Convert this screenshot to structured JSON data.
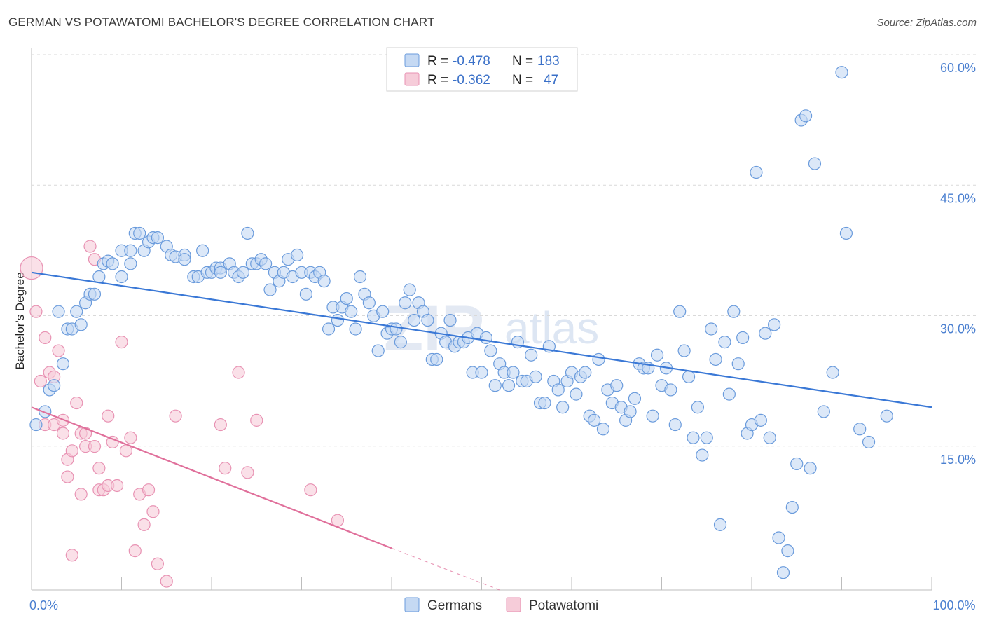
{
  "title": "GERMAN VS POTAWATOMI BACHELOR'S DEGREE CORRELATION CHART",
  "source": "Source: ZipAtlas.com",
  "watermark": {
    "zip": "ZIP",
    "atlas": "atlas"
  },
  "colors": {
    "blue": "#3a78d6",
    "blue_fill": "#c5d9f3",
    "blue_stroke": "#6a9bdc",
    "pink": "#e0709b",
    "pink_fill": "#f6ccd9",
    "pink_stroke": "#e892b3",
    "grid": "#d9d9d9",
    "tick_text": "#4a7fd0"
  },
  "legend_box": {
    "rows": [
      {
        "r_label": "R =",
        "r_value": "-0.478",
        "n_label": "N =",
        "n_value": "183",
        "series": "Germans"
      },
      {
        "r_label": "R =",
        "r_value": "-0.362",
        "n_label": "N =",
        "n_value": "47",
        "series": "Potawatomi"
      }
    ]
  },
  "bottom_legend": [
    {
      "label": "Germans",
      "series": "Germans"
    },
    {
      "label": "Potawatomi",
      "series": "Potawatomi"
    }
  ],
  "chart_data": {
    "type": "scatter",
    "title": "GERMAN VS POTAWATOMI BACHELOR'S DEGREE CORRELATION CHART",
    "xlabel": "",
    "ylabel": "Bachelor's Degree",
    "xlim": [
      0,
      100
    ],
    "ylim": [
      0,
      60
    ],
    "x_tick_labels": [
      {
        "value": 0,
        "label": "0.0%"
      },
      {
        "value": 100,
        "label": "100.0%"
      }
    ],
    "y_tick_labels": [
      {
        "value": 15,
        "label": "15.0%"
      },
      {
        "value": 30,
        "label": "30.0%"
      },
      {
        "value": 45,
        "label": "45.0%"
      },
      {
        "value": 60,
        "label": "60.0%"
      }
    ],
    "grid": true,
    "series": [
      {
        "name": "Germans",
        "r": -0.478,
        "n": 183,
        "trend": {
          "x0": 0,
          "y0": 36.5,
          "x1": 100,
          "y1": 21.0
        },
        "points": [
          [
            0.5,
            19.0
          ],
          [
            1.5,
            20.5
          ],
          [
            2,
            23
          ],
          [
            2.5,
            23.5
          ],
          [
            3,
            32
          ],
          [
            3.5,
            26
          ],
          [
            4,
            30
          ],
          [
            4.5,
            30
          ],
          [
            5,
            32
          ],
          [
            5.5,
            30.5
          ],
          [
            6,
            33
          ],
          [
            6.5,
            34
          ],
          [
            7,
            34
          ],
          [
            7.5,
            36
          ],
          [
            8,
            37.5
          ],
          [
            8.5,
            37.8
          ],
          [
            9,
            37.5
          ],
          [
            10,
            39
          ],
          [
            10,
            36
          ],
          [
            11,
            39
          ],
          [
            11,
            37.5
          ],
          [
            11.5,
            41
          ],
          [
            12,
            41
          ],
          [
            12.5,
            39
          ],
          [
            13,
            40
          ],
          [
            13.5,
            40.5
          ],
          [
            14,
            40.5
          ],
          [
            15,
            39.5
          ],
          [
            15.5,
            38.5
          ],
          [
            16,
            38.3
          ],
          [
            17,
            38.5
          ],
          [
            17,
            38
          ],
          [
            18,
            36
          ],
          [
            18.5,
            36
          ],
          [
            19,
            39
          ],
          [
            19.5,
            36.5
          ],
          [
            20,
            36.5
          ],
          [
            20.5,
            37
          ],
          [
            21,
            37
          ],
          [
            21,
            36.5
          ],
          [
            22,
            37.5
          ],
          [
            22.5,
            36.5
          ],
          [
            23,
            36
          ],
          [
            23.5,
            36.5
          ],
          [
            24,
            41
          ],
          [
            24.5,
            37.5
          ],
          [
            25,
            37.5
          ],
          [
            25.5,
            38
          ],
          [
            26,
            37.5
          ],
          [
            26.5,
            34.5
          ],
          [
            27,
            36.5
          ],
          [
            27.5,
            35.5
          ],
          [
            28,
            36.5
          ],
          [
            28.5,
            38
          ],
          [
            29,
            36
          ],
          [
            29.5,
            38.5
          ],
          [
            30,
            36.5
          ],
          [
            30.5,
            34
          ],
          [
            31,
            36.5
          ],
          [
            31.5,
            36
          ],
          [
            32,
            36.5
          ],
          [
            32.5,
            35.5
          ],
          [
            33,
            30
          ],
          [
            33.5,
            32.5
          ],
          [
            34,
            31
          ],
          [
            34.5,
            32.5
          ],
          [
            35,
            33.5
          ],
          [
            35.5,
            32
          ],
          [
            36,
            30
          ],
          [
            36.5,
            36
          ],
          [
            37,
            34
          ],
          [
            37.5,
            33
          ],
          [
            38,
            31.5
          ],
          [
            38.5,
            27.5
          ],
          [
            39,
            32
          ],
          [
            39.5,
            29.5
          ],
          [
            40,
            30
          ],
          [
            40.5,
            30
          ],
          [
            41,
            28.5
          ],
          [
            41.5,
            33
          ],
          [
            42,
            34.5
          ],
          [
            42.5,
            31
          ],
          [
            43,
            33
          ],
          [
            43.5,
            32
          ],
          [
            44,
            31
          ],
          [
            44.5,
            26.5
          ],
          [
            45,
            26.5
          ],
          [
            45.5,
            29.5
          ],
          [
            46,
            28.5
          ],
          [
            46.5,
            31
          ],
          [
            47,
            28
          ],
          [
            47.5,
            28.5
          ],
          [
            48,
            28.5
          ],
          [
            48.5,
            29
          ],
          [
            49,
            25
          ],
          [
            49.5,
            29.5
          ],
          [
            50,
            25
          ],
          [
            50.5,
            29
          ],
          [
            51,
            27.5
          ],
          [
            51.5,
            23.5
          ],
          [
            52,
            26
          ],
          [
            52.5,
            25
          ],
          [
            53,
            23.5
          ],
          [
            53.5,
            25
          ],
          [
            54,
            28.5
          ],
          [
            54.5,
            24
          ],
          [
            55,
            24
          ],
          [
            55.5,
            27
          ],
          [
            56,
            24.5
          ],
          [
            56.5,
            21.5
          ],
          [
            57,
            21.5
          ],
          [
            57.5,
            28
          ],
          [
            58,
            24
          ],
          [
            58.5,
            23
          ],
          [
            59,
            21
          ],
          [
            59.5,
            24
          ],
          [
            60,
            25
          ],
          [
            60.5,
            22.5
          ],
          [
            61,
            24.5
          ],
          [
            61.5,
            25
          ],
          [
            62,
            20
          ],
          [
            62.5,
            19.5
          ],
          [
            63,
            26.5
          ],
          [
            63.5,
            18.5
          ],
          [
            64,
            23
          ],
          [
            64.5,
            21.5
          ],
          [
            65,
            23.5
          ],
          [
            65.5,
            21
          ],
          [
            66,
            19.5
          ],
          [
            66.5,
            20.5
          ],
          [
            67,
            22
          ],
          [
            67.5,
            26
          ],
          [
            68,
            25.5
          ],
          [
            68.5,
            25.5
          ],
          [
            69,
            20
          ],
          [
            69.5,
            27
          ],
          [
            70,
            23.5
          ],
          [
            70.5,
            25.5
          ],
          [
            71,
            23
          ],
          [
            71.5,
            19
          ],
          [
            72,
            32
          ],
          [
            72.5,
            27.5
          ],
          [
            73,
            24.5
          ],
          [
            73.5,
            17.5
          ],
          [
            74,
            21
          ],
          [
            74.5,
            15.5
          ],
          [
            75,
            17.5
          ],
          [
            75.5,
            30
          ],
          [
            76,
            26.5
          ],
          [
            76.5,
            7.5
          ],
          [
            77,
            28.5
          ],
          [
            77.5,
            22.5
          ],
          [
            78,
            32
          ],
          [
            78.5,
            26
          ],
          [
            79,
            29
          ],
          [
            79.5,
            18
          ],
          [
            80,
            19
          ],
          [
            80.5,
            48
          ],
          [
            81,
            19.5
          ],
          [
            81.5,
            29.5
          ],
          [
            82,
            17.5
          ],
          [
            82.5,
            30.5
          ],
          [
            83,
            6
          ],
          [
            83.5,
            2
          ],
          [
            84,
            4.5
          ],
          [
            84.5,
            9.5
          ],
          [
            85,
            14.5
          ],
          [
            85.5,
            54
          ],
          [
            86,
            54.5
          ],
          [
            86.5,
            14
          ],
          [
            87,
            49
          ],
          [
            88,
            20.5
          ],
          [
            89,
            25
          ],
          [
            90,
            59.5
          ],
          [
            90.5,
            41
          ],
          [
            92,
            18.5
          ],
          [
            93,
            17
          ],
          [
            95,
            20
          ]
        ]
      },
      {
        "name": "Potawatomi",
        "r": -0.362,
        "n": 47,
        "trend": {
          "x0": 0,
          "y0": 21.0,
          "x1": 40,
          "y1": 4.8
        },
        "trend_dashed_to": {
          "x": 52,
          "y": 0
        },
        "points": [
          [
            0,
            37
          ],
          [
            0.5,
            32
          ],
          [
            1,
            24
          ],
          [
            1.5,
            29
          ],
          [
            1.5,
            19
          ],
          [
            2,
            25
          ],
          [
            2.5,
            24.5
          ],
          [
            2.5,
            19
          ],
          [
            3,
            27.5
          ],
          [
            3.5,
            19.5
          ],
          [
            3.5,
            18
          ],
          [
            4,
            15
          ],
          [
            4,
            13
          ],
          [
            4.5,
            16
          ],
          [
            4.5,
            4
          ],
          [
            5,
            21.5
          ],
          [
            5.5,
            18
          ],
          [
            5.5,
            11
          ],
          [
            6,
            16.5
          ],
          [
            6,
            18
          ],
          [
            6.5,
            39.5
          ],
          [
            7,
            38
          ],
          [
            7,
            16.5
          ],
          [
            7.5,
            14
          ],
          [
            7.5,
            11.5
          ],
          [
            8,
            11.5
          ],
          [
            8.5,
            20
          ],
          [
            8.5,
            12
          ],
          [
            9,
            17
          ],
          [
            9.5,
            12
          ],
          [
            10,
            28.5
          ],
          [
            10.5,
            16
          ],
          [
            11,
            17.5
          ],
          [
            11.5,
            4.5
          ],
          [
            12,
            11
          ],
          [
            12.5,
            7.5
          ],
          [
            13,
            11.5
          ],
          [
            13.5,
            9
          ],
          [
            14,
            3
          ],
          [
            15,
            1
          ],
          [
            16,
            20
          ],
          [
            21,
            19
          ],
          [
            21.5,
            14
          ],
          [
            23,
            25
          ],
          [
            24,
            13.5
          ],
          [
            25,
            19.5
          ],
          [
            31,
            11.5
          ],
          [
            34,
            8
          ]
        ]
      }
    ]
  }
}
